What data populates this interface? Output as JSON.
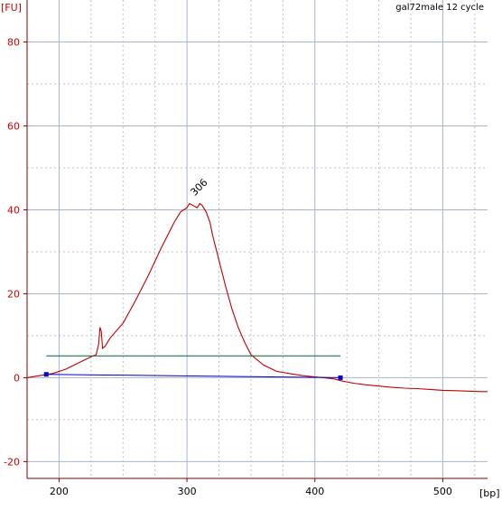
{
  "chart_data": {
    "type": "line",
    "title": "gal72male 12 cycle",
    "ylabel": "[FU]",
    "xlabel": "[bp]",
    "xlim": [
      175,
      535
    ],
    "ylim": [
      -24,
      90
    ],
    "x_ticks": [
      200,
      300,
      400,
      500
    ],
    "y_ticks": [
      -20,
      0,
      20,
      40,
      60,
      80
    ],
    "grid": true,
    "colors": {
      "trace": "#c00000",
      "baseline": "#0000cc",
      "threshold": "#006633",
      "axis": "#800000",
      "grid_major": "#a8b4c8",
      "grid_minor": "#c0c0c0",
      "tick_label": "#cc0000"
    },
    "peak_annotation": {
      "x": 306,
      "y": 41.5,
      "label": "306"
    },
    "series": [
      {
        "role": "electropherogram",
        "x": [
          175,
          185,
          195,
          205,
          215,
          225,
          229,
          231,
          232,
          233,
          234,
          236,
          240,
          250,
          260,
          270,
          280,
          290,
          295,
          300,
          302,
          305,
          308,
          310,
          312,
          315,
          318,
          320,
          325,
          330,
          335,
          340,
          345,
          350,
          360,
          370,
          380,
          390,
          400,
          410,
          415,
          420,
          430,
          440,
          450,
          460,
          470,
          480,
          490,
          500,
          510,
          520,
          530,
          535
        ],
        "y": [
          0,
          0.5,
          1,
          2,
          3.5,
          5,
          5.5,
          8,
          12,
          11,
          7,
          7.5,
          9.5,
          13,
          18.5,
          24.5,
          31,
          37,
          39.5,
          40.5,
          41.5,
          41,
          40.5,
          41.5,
          41,
          39.5,
          37,
          34,
          28,
          22,
          16.5,
          12,
          8.5,
          5.5,
          3,
          1.5,
          1,
          0.5,
          0.2,
          -0.1,
          -0.3,
          -0.7,
          -1.3,
          -1.7,
          -2,
          -2.3,
          -2.5,
          -2.6,
          -2.8,
          -3,
          -3.1,
          -3.2,
          -3.3,
          -3.3
        ]
      },
      {
        "role": "baseline",
        "x": [
          190,
          420
        ],
        "y": [
          0.8,
          0
        ]
      },
      {
        "role": "threshold",
        "x": [
          190,
          420
        ],
        "y": [
          5.2,
          5.2
        ]
      }
    ]
  }
}
